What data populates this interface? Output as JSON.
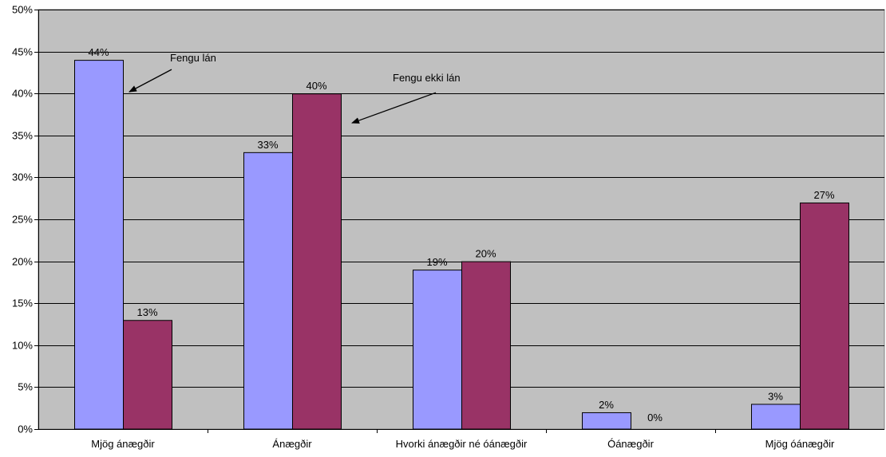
{
  "chart_data": {
    "type": "bar",
    "categories": [
      "Mjög ánægðir",
      "Ánægðir",
      "Hvorki ánægðir né óánægðir",
      "Óánægðir",
      "Mjög óánægðir"
    ],
    "series": [
      {
        "name": "Fengu lán",
        "values": [
          44,
          33,
          19,
          2,
          3
        ],
        "labels": [
          "44%",
          "33%",
          "19%",
          "2%",
          "3%"
        ],
        "color": "#9999FF"
      },
      {
        "name": "Fengu ekki lán",
        "values": [
          13,
          40,
          20,
          0,
          27
        ],
        "labels": [
          "13%",
          "40%",
          "20%",
          "0%",
          "27%"
        ],
        "color": "#993366"
      }
    ],
    "yticks": [
      "0%",
      "5%",
      "10%",
      "15%",
      "20%",
      "25%",
      "30%",
      "35%",
      "40%",
      "45%",
      "50%"
    ],
    "ylim": [
      0,
      50
    ],
    "grid": true,
    "plot_background": "#C0C0C0",
    "legend": "none",
    "annotations": [
      {
        "text": "Fengu lán",
        "series": 0,
        "category": 0
      },
      {
        "text": "Fengu ekki lán",
        "series": 1,
        "category": 1
      }
    ]
  }
}
